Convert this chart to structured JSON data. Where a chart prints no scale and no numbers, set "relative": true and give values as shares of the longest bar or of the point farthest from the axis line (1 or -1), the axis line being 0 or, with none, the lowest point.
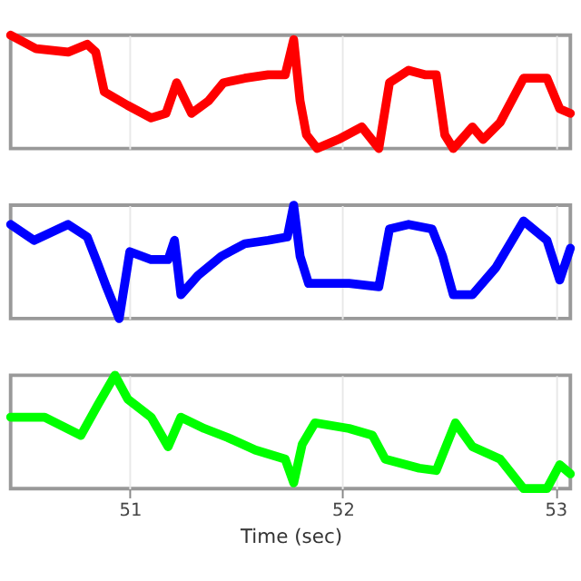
{
  "chart_data": [
    {
      "type": "line",
      "relative": true,
      "color": "#ff0000",
      "xlim": [
        50.44,
        53.07
      ],
      "xticks": [
        51,
        52,
        53
      ],
      "grid": "x",
      "tick_labels": false,
      "x": [
        50.44,
        50.56,
        50.71,
        50.8,
        50.84,
        50.88,
        50.99,
        51.1,
        51.17,
        51.22,
        51.29,
        51.37,
        51.44,
        51.54,
        51.65,
        51.73,
        51.77,
        51.8,
        51.83,
        51.88,
        51.98,
        52.09,
        52.17,
        52.22,
        52.31,
        52.39,
        52.44,
        52.48,
        52.52,
        52.61,
        52.66,
        52.74,
        52.85,
        52.96,
        53.02,
        53.07
      ],
      "values": [
        1.0,
        0.88,
        0.85,
        0.92,
        0.85,
        0.5,
        0.38,
        0.27,
        0.31,
        0.58,
        0.31,
        0.42,
        0.58,
        0.62,
        0.65,
        0.65,
        0.96,
        0.42,
        0.12,
        0,
        0.08,
        0.19,
        0,
        0.58,
        0.69,
        0.65,
        0.65,
        0.12,
        0,
        0.19,
        0.08,
        0.23,
        0.62,
        0.62,
        0.35,
        0.31
      ]
    },
    {
      "type": "line",
      "relative": true,
      "color": "#0000ff",
      "xlim": [
        50.44,
        53.07
      ],
      "xticks": [
        51,
        52,
        53
      ],
      "grid": "x",
      "tick_labels": false,
      "x": [
        50.44,
        50.55,
        50.71,
        50.8,
        50.85,
        50.89,
        50.95,
        51.0,
        51.1,
        51.18,
        51.21,
        51.24,
        51.32,
        51.43,
        51.54,
        51.65,
        51.74,
        51.77,
        51.8,
        51.84,
        51.89,
        52.03,
        52.17,
        52.22,
        52.31,
        52.42,
        52.47,
        52.52,
        52.61,
        52.72,
        52.85,
        52.96,
        53.02,
        53.07
      ],
      "values": [
        0.83,
        0.69,
        0.83,
        0.72,
        0.48,
        0.28,
        0,
        0.59,
        0.52,
        0.52,
        0.69,
        0.21,
        0.38,
        0.55,
        0.66,
        0.69,
        0.72,
        1.0,
        0.55,
        0.31,
        0.31,
        0.31,
        0.28,
        0.79,
        0.83,
        0.79,
        0.55,
        0.21,
        0.21,
        0.45,
        0.86,
        0.69,
        0.34,
        0.62
      ]
    },
    {
      "type": "line",
      "relative": true,
      "color": "#00ff00",
      "xlim": [
        50.44,
        53.07
      ],
      "xticks": [
        51,
        52,
        53
      ],
      "grid": "x",
      "tick_labels": "x",
      "xlabel": "Time (sec)",
      "x": [
        50.44,
        50.6,
        50.77,
        50.85,
        50.93,
        50.99,
        51.1,
        51.18,
        51.24,
        51.35,
        51.46,
        51.59,
        51.73,
        51.77,
        51.81,
        51.87,
        52.03,
        52.14,
        52.2,
        52.36,
        52.44,
        52.53,
        52.61,
        52.74,
        52.85,
        52.96,
        53.02,
        53.07
      ],
      "values": [
        0.63,
        0.63,
        0.47,
        0.74,
        1.0,
        0.79,
        0.63,
        0.37,
        0.63,
        0.53,
        0.45,
        0.34,
        0.26,
        0.05,
        0.39,
        0.58,
        0.53,
        0.47,
        0.26,
        0.18,
        0.16,
        0.58,
        0.37,
        0.26,
        0,
        0,
        0.21,
        0.13
      ]
    }
  ]
}
